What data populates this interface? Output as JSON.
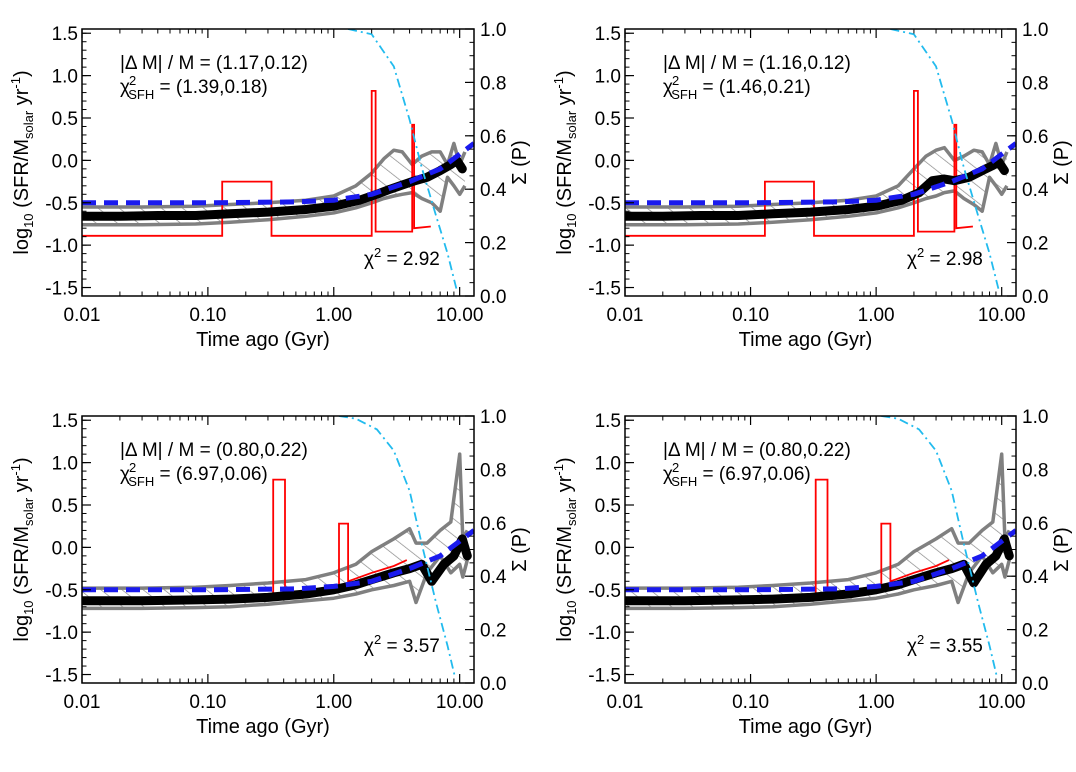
{
  "figure": {
    "panels": [
      {
        "id": "top-left",
        "annotation_dm_lhs": "|Δ M| / M",
        "annotation_dm_value": "(1.17,0.12)",
        "annotation_chi_sfh_value": "(1.39,0.18)",
        "annotation_chi2_value": "2.92"
      },
      {
        "id": "top-right",
        "annotation_dm_lhs": "|Δ M| / M",
        "annotation_dm_value": "(1.16,0.12)",
        "annotation_chi_sfh_value": "(1.46,0.21)",
        "annotation_chi2_value": "2.98"
      },
      {
        "id": "bottom-left",
        "annotation_dm_lhs": "|Δ M| / M",
        "annotation_dm_value": "(0.80,0.22)",
        "annotation_chi_sfh_value": "(6.97,0.06)",
        "annotation_chi2_value": "3.57"
      },
      {
        "id": "bottom-right",
        "annotation_dm_lhs": "|Δ M| / M",
        "annotation_dm_value": "(0.80,0.22)",
        "annotation_chi_sfh_value": "(6.97,0.06)",
        "annotation_chi2_value": "3.55"
      }
    ]
  },
  "chart_data": [
    {
      "type": "line",
      "xlabel": "Time ago (Gyr)",
      "ylabel": "log10 (SFR/Msolar yr-1)",
      "y2label": "Σ (P)",
      "xscale": "log",
      "xlim": [
        0.01,
        13.0
      ],
      "ylim": [
        -1.6,
        1.55
      ],
      "y2lim": [
        0.0,
        1.0
      ],
      "x_ticks": [
        "0.01",
        "0.10",
        "1.00",
        "10.00"
      ],
      "y_ticks": [
        "-1.5",
        "-1.0",
        "-0.5",
        "0.0",
        "0.5",
        "1.0",
        "1.5"
      ],
      "y2_ticks": [
        "0.0",
        "0.2",
        "0.4",
        "0.6",
        "0.8",
        "1.0"
      ],
      "colors": {
        "median": "#000000",
        "band": "#808080",
        "input": "#ff0000",
        "model": "#1a1aee",
        "cumulative": "#22bbee"
      },
      "series": [
        {
          "style": "median",
          "x": [
            0.01,
            0.02,
            0.04,
            0.08,
            0.15,
            0.3,
            0.6,
            1.0,
            1.6,
            2.2,
            2.8,
            3.5,
            4.2,
            5.5,
            7.0,
            8.5,
            9.5,
            10.5
          ],
          "y": [
            -0.66,
            -0.66,
            -0.65,
            -0.65,
            -0.63,
            -0.61,
            -0.58,
            -0.54,
            -0.47,
            -0.4,
            -0.34,
            -0.29,
            -0.25,
            -0.2,
            -0.12,
            -0.05,
            0.0,
            -0.1
          ]
        },
        {
          "style": "band-upper",
          "x": [
            0.01,
            0.03,
            0.08,
            0.15,
            0.3,
            0.6,
            1.0,
            1.5,
            2.0,
            2.5,
            3.0,
            3.5,
            4.2,
            5.0,
            6.0,
            7.0,
            8.0,
            9.0,
            10.0,
            11.0
          ],
          "y": [
            -0.55,
            -0.55,
            -0.54,
            -0.52,
            -0.5,
            -0.47,
            -0.42,
            -0.3,
            -0.15,
            0.02,
            0.12,
            0.1,
            -0.05,
            0.05,
            0.1,
            0.1,
            -0.05,
            0.2,
            -0.05,
            0.1
          ]
        },
        {
          "style": "band-lower",
          "x": [
            0.01,
            0.03,
            0.08,
            0.15,
            0.3,
            0.6,
            1.0,
            1.5,
            2.0,
            2.5,
            3.0,
            3.5,
            4.2,
            5.0,
            6.0,
            7.0,
            8.0,
            9.0,
            10.0,
            11.0
          ],
          "y": [
            -0.76,
            -0.76,
            -0.75,
            -0.73,
            -0.7,
            -0.66,
            -0.62,
            -0.56,
            -0.5,
            -0.45,
            -0.42,
            -0.4,
            -0.38,
            -0.45,
            -0.5,
            -0.6,
            -0.2,
            -0.3,
            -0.4,
            -0.3
          ]
        },
        {
          "style": "input",
          "x": [
            0.01,
            0.13,
            0.13,
            0.32,
            0.32,
            2.0,
            2.0,
            2.15,
            2.15,
            4.2,
            4.2,
            4.35,
            4.35,
            5.9
          ],
          "y": [
            -0.89,
            -0.89,
            -0.25,
            -0.25,
            -0.89,
            -0.89,
            0.82,
            0.82,
            -0.84,
            -0.84,
            0.42,
            0.42,
            -0.8,
            -0.78
          ]
        },
        {
          "style": "model",
          "x": [
            0.01,
            0.1,
            0.5,
            1.0,
            2.0,
            4.0,
            7.0,
            13.0
          ],
          "y": [
            -0.5,
            -0.5,
            -0.49,
            -0.47,
            -0.4,
            -0.25,
            -0.1,
            0.2
          ]
        },
        {
          "style": "cumulative",
          "axis": "y2",
          "x": [
            1.3,
            2.0,
            3.0,
            4.0,
            5.0,
            6.5,
            8.0,
            9.5
          ],
          "y": [
            1.0,
            0.98,
            0.86,
            0.66,
            0.48,
            0.3,
            0.16,
            0.02
          ]
        }
      ]
    },
    {
      "type": "line",
      "xlabel": "Time ago (Gyr)",
      "ylabel": "log10 (SFR/Msolar yr-1)",
      "y2label": "Σ (P)",
      "xscale": "log",
      "xlim": [
        0.01,
        13.0
      ],
      "ylim": [
        -1.6,
        1.55
      ],
      "y2lim": [
        0.0,
        1.0
      ],
      "x_ticks": [
        "0.01",
        "0.10",
        "1.00",
        "10.00"
      ],
      "y_ticks": [
        "-1.5",
        "-1.0",
        "-0.5",
        "0.0",
        "0.5",
        "1.0",
        "1.5"
      ],
      "y2_ticks": [
        "0.0",
        "0.2",
        "0.4",
        "0.6",
        "0.8",
        "1.0"
      ],
      "colors": {
        "median": "#000000",
        "band": "#808080",
        "input": "#ff0000",
        "model": "#1a1aee",
        "cumulative": "#22bbee"
      },
      "series": [
        {
          "style": "median",
          "x": [
            0.01,
            0.02,
            0.04,
            0.08,
            0.15,
            0.3,
            0.6,
            1.0,
            1.6,
            2.2,
            2.8,
            3.5,
            4.2,
            5.5,
            7.0,
            8.5,
            9.5,
            10.5
          ],
          "y": [
            -0.66,
            -0.66,
            -0.65,
            -0.65,
            -0.63,
            -0.61,
            -0.58,
            -0.54,
            -0.47,
            -0.38,
            -0.24,
            -0.22,
            -0.24,
            -0.2,
            -0.12,
            -0.06,
            -0.02,
            -0.12
          ]
        },
        {
          "style": "band-upper",
          "x": [
            0.01,
            0.03,
            0.08,
            0.15,
            0.3,
            0.6,
            1.0,
            1.5,
            2.0,
            2.5,
            3.0,
            3.5,
            4.2,
            5.0,
            6.0,
            7.0,
            8.0,
            9.0,
            10.0,
            11.0
          ],
          "y": [
            -0.55,
            -0.55,
            -0.54,
            -0.52,
            -0.5,
            -0.47,
            -0.42,
            -0.3,
            -0.1,
            0.05,
            0.12,
            0.15,
            0.0,
            0.05,
            0.12,
            0.1,
            -0.05,
            0.2,
            -0.05,
            0.1
          ]
        },
        {
          "style": "band-lower",
          "x": [
            0.01,
            0.03,
            0.08,
            0.15,
            0.3,
            0.6,
            1.0,
            1.5,
            2.0,
            2.5,
            3.0,
            3.5,
            4.2,
            5.0,
            6.0,
            7.0,
            8.0,
            9.0,
            10.0,
            11.0
          ],
          "y": [
            -0.76,
            -0.76,
            -0.75,
            -0.73,
            -0.7,
            -0.66,
            -0.62,
            -0.56,
            -0.5,
            -0.45,
            -0.42,
            -0.38,
            -0.36,
            -0.45,
            -0.52,
            -0.6,
            -0.2,
            -0.3,
            -0.4,
            -0.3
          ]
        },
        {
          "style": "input",
          "x": [
            0.01,
            0.13,
            0.13,
            0.32,
            0.32,
            2.0,
            2.0,
            2.15,
            2.15,
            4.2,
            4.2,
            4.35,
            4.35,
            5.9
          ],
          "y": [
            -0.89,
            -0.89,
            -0.25,
            -0.25,
            -0.89,
            -0.89,
            0.82,
            0.82,
            -0.84,
            -0.84,
            0.42,
            0.42,
            -0.8,
            -0.78
          ]
        },
        {
          "style": "model",
          "x": [
            0.01,
            0.1,
            0.5,
            1.0,
            2.0,
            4.0,
            7.0,
            13.0
          ],
          "y": [
            -0.5,
            -0.5,
            -0.49,
            -0.47,
            -0.4,
            -0.25,
            -0.1,
            0.2
          ]
        },
        {
          "style": "cumulative",
          "axis": "y2",
          "x": [
            1.3,
            2.0,
            3.0,
            4.0,
            5.0,
            6.5,
            8.0,
            9.5
          ],
          "y": [
            1.0,
            0.98,
            0.86,
            0.66,
            0.48,
            0.3,
            0.16,
            0.02
          ]
        }
      ]
    },
    {
      "type": "line",
      "xlabel": "Time ago (Gyr)",
      "ylabel": "log10 (SFR/Msolar yr-1)",
      "y2label": "Σ (P)",
      "xscale": "log",
      "xlim": [
        0.01,
        13.0
      ],
      "ylim": [
        -1.6,
        1.55
      ],
      "y2lim": [
        0.0,
        1.0
      ],
      "x_ticks": [
        "0.01",
        "0.10",
        "1.00",
        "10.00"
      ],
      "y_ticks": [
        "-1.5",
        "-1.0",
        "-0.5",
        "0.0",
        "0.5",
        "1.0",
        "1.5"
      ],
      "y2_ticks": [
        "0.0",
        "0.2",
        "0.4",
        "0.6",
        "0.8",
        "1.0"
      ],
      "colors": {
        "median": "#000000",
        "band": "#808080",
        "input": "#ff0000",
        "model": "#1a1aee",
        "cumulative": "#22bbee"
      },
      "series": [
        {
          "style": "median",
          "x": [
            0.01,
            0.03,
            0.08,
            0.15,
            0.3,
            0.6,
            1.0,
            1.5,
            2.0,
            3.0,
            4.0,
            5.0,
            6.0,
            7.5,
            9.0,
            10.5,
            11.5
          ],
          "y": [
            -0.63,
            -0.63,
            -0.62,
            -0.61,
            -0.59,
            -0.55,
            -0.5,
            -0.44,
            -0.38,
            -0.3,
            -0.25,
            -0.2,
            -0.4,
            -0.2,
            -0.1,
            0.1,
            -0.1
          ]
        },
        {
          "style": "band-upper",
          "x": [
            0.01,
            0.03,
            0.08,
            0.15,
            0.3,
            0.6,
            1.0,
            1.5,
            2.0,
            3.0,
            4.0,
            4.5,
            5.5,
            7.0,
            8.5,
            10.0,
            10.6,
            11.5
          ],
          "y": [
            -0.48,
            -0.48,
            -0.47,
            -0.45,
            -0.42,
            -0.38,
            -0.3,
            -0.2,
            -0.05,
            0.1,
            0.22,
            0.05,
            0.05,
            0.2,
            0.3,
            1.1,
            0.1,
            0.2
          ]
        },
        {
          "style": "band-lower",
          "x": [
            0.01,
            0.03,
            0.08,
            0.15,
            0.3,
            0.6,
            1.0,
            1.5,
            2.0,
            3.0,
            4.0,
            4.5,
            5.5,
            7.0,
            8.5,
            10.0,
            10.6,
            11.5
          ],
          "y": [
            -0.72,
            -0.72,
            -0.71,
            -0.7,
            -0.67,
            -0.63,
            -0.6,
            -0.55,
            -0.5,
            -0.45,
            -0.4,
            -0.65,
            -0.3,
            -0.1,
            -0.3,
            -0.2,
            -0.35,
            -0.15
          ]
        },
        {
          "style": "input",
          "x": [
            0.01,
            0.1,
            0.2,
            0.33,
            0.33,
            0.41,
            0.41,
            1.1,
            1.1,
            1.3,
            1.3,
            2.0,
            3.0,
            3.8
          ],
          "y": [
            -0.66,
            -0.65,
            -0.62,
            -0.58,
            0.8,
            0.8,
            -0.55,
            -0.45,
            0.28,
            0.28,
            -0.4,
            -0.3,
            -0.22,
            -0.15
          ]
        },
        {
          "style": "model",
          "x": [
            0.01,
            0.1,
            0.5,
            1.0,
            2.0,
            4.0,
            7.0,
            13.0
          ],
          "y": [
            -0.5,
            -0.5,
            -0.49,
            -0.46,
            -0.4,
            -0.25,
            -0.1,
            0.2
          ]
        },
        {
          "style": "cumulative",
          "axis": "y2",
          "x": [
            1.1,
            1.5,
            2.2,
            3.0,
            4.0,
            5.0,
            6.5,
            8.0,
            9.2
          ],
          "y": [
            1.0,
            0.99,
            0.95,
            0.87,
            0.72,
            0.52,
            0.3,
            0.14,
            0.02
          ]
        }
      ]
    },
    {
      "type": "line",
      "xlabel": "Time ago (Gyr)",
      "ylabel": "log10 (SFR/Msolar yr-1)",
      "y2label": "Σ (P)",
      "xscale": "log",
      "xlim": [
        0.01,
        13.0
      ],
      "ylim": [
        -1.6,
        1.55
      ],
      "y2lim": [
        0.0,
        1.0
      ],
      "x_ticks": [
        "0.01",
        "0.10",
        "1.00",
        "10.00"
      ],
      "y_ticks": [
        "-1.5",
        "-1.0",
        "-0.5",
        "0.0",
        "0.5",
        "1.0",
        "1.5"
      ],
      "y2_ticks": [
        "0.0",
        "0.2",
        "0.4",
        "0.6",
        "0.8",
        "1.0"
      ],
      "colors": {
        "median": "#000000",
        "band": "#808080",
        "input": "#ff0000",
        "model": "#1a1aee",
        "cumulative": "#22bbee"
      },
      "series": [
        {
          "style": "median",
          "x": [
            0.01,
            0.03,
            0.08,
            0.15,
            0.3,
            0.6,
            1.0,
            1.5,
            2.0,
            3.0,
            4.0,
            5.0,
            6.0,
            7.5,
            9.0,
            10.5,
            11.5
          ],
          "y": [
            -0.63,
            -0.63,
            -0.62,
            -0.61,
            -0.59,
            -0.55,
            -0.5,
            -0.44,
            -0.38,
            -0.3,
            -0.25,
            -0.2,
            -0.42,
            -0.2,
            -0.1,
            0.1,
            -0.1
          ]
        },
        {
          "style": "band-upper",
          "x": [
            0.01,
            0.03,
            0.08,
            0.15,
            0.3,
            0.6,
            1.0,
            1.5,
            2.0,
            3.0,
            4.0,
            4.5,
            5.5,
            7.0,
            8.5,
            10.0,
            10.6,
            11.5
          ],
          "y": [
            -0.48,
            -0.48,
            -0.47,
            -0.45,
            -0.42,
            -0.38,
            -0.3,
            -0.2,
            -0.05,
            0.1,
            0.22,
            0.05,
            0.05,
            0.2,
            0.3,
            1.1,
            0.1,
            0.2
          ]
        },
        {
          "style": "band-lower",
          "x": [
            0.01,
            0.03,
            0.08,
            0.15,
            0.3,
            0.6,
            1.0,
            1.5,
            2.0,
            3.0,
            4.0,
            4.5,
            5.5,
            7.0,
            8.5,
            10.0,
            10.6,
            11.5
          ],
          "y": [
            -0.72,
            -0.72,
            -0.71,
            -0.7,
            -0.67,
            -0.63,
            -0.6,
            -0.55,
            -0.5,
            -0.45,
            -0.4,
            -0.65,
            -0.3,
            -0.1,
            -0.3,
            -0.2,
            -0.35,
            -0.15
          ]
        },
        {
          "style": "input",
          "x": [
            0.01,
            0.1,
            0.2,
            0.33,
            0.33,
            0.41,
            0.41,
            1.1,
            1.1,
            1.3,
            1.3,
            2.0,
            3.0,
            3.8
          ],
          "y": [
            -0.66,
            -0.65,
            -0.62,
            -0.58,
            0.8,
            0.8,
            -0.55,
            -0.45,
            0.28,
            0.28,
            -0.4,
            -0.3,
            -0.22,
            -0.15
          ]
        },
        {
          "style": "model",
          "x": [
            0.01,
            0.1,
            0.5,
            1.0,
            2.0,
            4.0,
            7.0,
            13.0
          ],
          "y": [
            -0.5,
            -0.5,
            -0.49,
            -0.46,
            -0.4,
            -0.25,
            -0.1,
            0.2
          ]
        },
        {
          "style": "cumulative",
          "axis": "y2",
          "x": [
            1.1,
            1.5,
            2.2,
            3.0,
            4.0,
            5.0,
            6.5,
            8.0,
            9.2
          ],
          "y": [
            1.0,
            0.99,
            0.95,
            0.87,
            0.72,
            0.52,
            0.3,
            0.14,
            0.02
          ]
        }
      ]
    }
  ]
}
